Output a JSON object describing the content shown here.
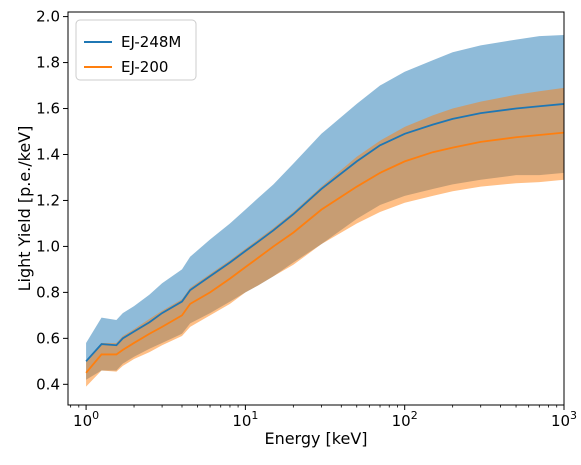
{
  "chart_data": {
    "type": "line",
    "title": "",
    "xlabel": "Energy [keV]",
    "ylabel": "Light Yield [p.e./keV]",
    "xscale": "log",
    "xlim": [
      0.77,
      1000
    ],
    "ylim": [
      0.31,
      2.02
    ],
    "grid": false,
    "legend_position": "top-left",
    "x_ticks": [
      {
        "value": 1,
        "base": "10",
        "exp": "0"
      },
      {
        "value": 10,
        "base": "10",
        "exp": "1"
      },
      {
        "value": 100,
        "base": "10",
        "exp": "2"
      },
      {
        "value": 1000,
        "base": "10",
        "exp": "3"
      }
    ],
    "y_ticks": [
      "0.4",
      "0.6",
      "0.8",
      "1.0",
      "1.2",
      "1.4",
      "1.6",
      "1.8",
      "2.0"
    ],
    "x": [
      1.0,
      1.25,
      1.55,
      1.7,
      2.0,
      2.5,
      3.0,
      4.0,
      4.5,
      6.0,
      8.0,
      10,
      12,
      15,
      20,
      30,
      50,
      70,
      100,
      150,
      200,
      300,
      500,
      700,
      1000
    ],
    "series": [
      {
        "name": "EJ-248M",
        "color": "#1f77b4",
        "band_color": "#1f77b4",
        "values": [
          0.5,
          0.575,
          0.57,
          0.6,
          0.63,
          0.67,
          0.71,
          0.76,
          0.81,
          0.87,
          0.93,
          0.98,
          1.02,
          1.07,
          1.14,
          1.25,
          1.37,
          1.44,
          1.49,
          1.53,
          1.555,
          1.58,
          1.6,
          1.61,
          1.62
        ],
        "upper": [
          0.58,
          0.69,
          0.68,
          0.71,
          0.74,
          0.79,
          0.84,
          0.9,
          0.955,
          1.03,
          1.1,
          1.16,
          1.21,
          1.27,
          1.36,
          1.49,
          1.62,
          1.7,
          1.76,
          1.81,
          1.845,
          1.875,
          1.9,
          1.915,
          1.92
        ],
        "lower": [
          0.42,
          0.46,
          0.46,
          0.49,
          0.52,
          0.555,
          0.58,
          0.62,
          0.665,
          0.71,
          0.76,
          0.8,
          0.83,
          0.87,
          0.93,
          1.01,
          1.12,
          1.18,
          1.22,
          1.25,
          1.27,
          1.29,
          1.31,
          1.31,
          1.32
        ]
      },
      {
        "name": "EJ-200",
        "color": "#ff7f0e",
        "band_color": "#ff7f0e",
        "values": [
          0.45,
          0.53,
          0.53,
          0.55,
          0.58,
          0.62,
          0.65,
          0.7,
          0.75,
          0.8,
          0.86,
          0.91,
          0.95,
          1.0,
          1.06,
          1.16,
          1.26,
          1.32,
          1.37,
          1.41,
          1.43,
          1.455,
          1.475,
          1.485,
          1.495
        ],
        "upper": [
          0.5,
          0.58,
          0.58,
          0.61,
          0.64,
          0.685,
          0.72,
          0.77,
          0.82,
          0.88,
          0.94,
          0.99,
          1.03,
          1.08,
          1.15,
          1.26,
          1.39,
          1.46,
          1.52,
          1.57,
          1.6,
          1.63,
          1.66,
          1.675,
          1.69
        ],
        "lower": [
          0.39,
          0.46,
          0.455,
          0.48,
          0.51,
          0.54,
          0.57,
          0.61,
          0.65,
          0.7,
          0.75,
          0.8,
          0.83,
          0.87,
          0.92,
          1.01,
          1.1,
          1.15,
          1.19,
          1.22,
          1.24,
          1.26,
          1.275,
          1.28,
          1.29
        ]
      }
    ]
  }
}
